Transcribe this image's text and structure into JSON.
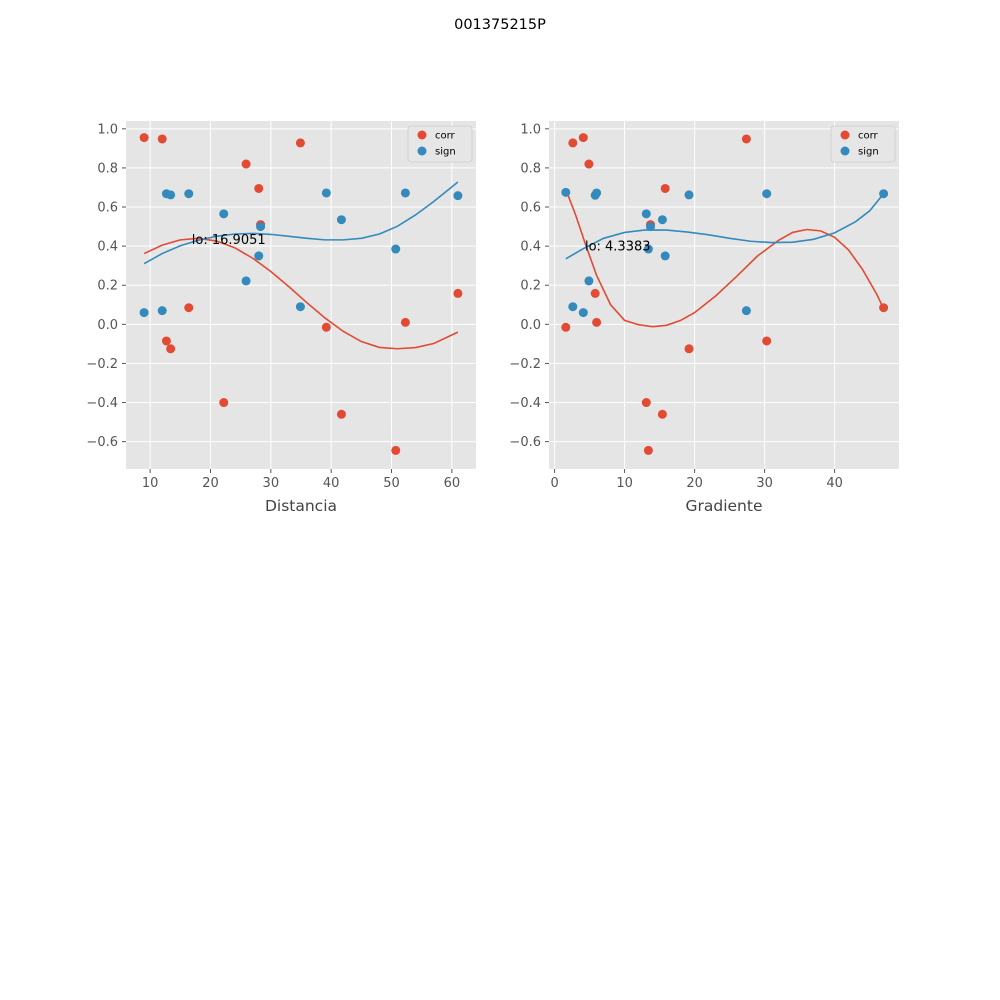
{
  "figure_title": "001375215P",
  "colors": {
    "corr": "#E24A33",
    "sign": "#348ABD",
    "panel_bg": "#E5E5E5",
    "grid": "#FFFFFF"
  },
  "chart_data": [
    {
      "type": "scatter",
      "xlabel": "Distancia",
      "annotation": {
        "text": "lo: 16.9051",
        "x": 16.9051,
        "y": 0.435
      },
      "xlim": [
        6,
        64
      ],
      "ylim": [
        -0.74,
        1.04
      ],
      "xticks": [
        10,
        20,
        30,
        40,
        50,
        60
      ],
      "yticks": [
        -0.6,
        -0.4,
        -0.2,
        0.0,
        0.2,
        0.4,
        0.6,
        0.8,
        1.0
      ],
      "legend": {
        "position": "upper right",
        "entries": [
          "corr",
          "sign"
        ]
      },
      "series": [
        {
          "name": "corr",
          "points": [
            [
              9.0,
              0.955
            ],
            [
              12.0,
              0.948
            ],
            [
              12.7,
              -0.085
            ],
            [
              13.4,
              -0.125
            ],
            [
              16.4,
              0.085
            ],
            [
              22.2,
              -0.4
            ],
            [
              25.9,
              0.82
            ],
            [
              28.0,
              0.695
            ],
            [
              28.3,
              0.51
            ],
            [
              34.9,
              0.928
            ],
            [
              39.2,
              -0.015
            ],
            [
              41.7,
              -0.46
            ],
            [
              50.7,
              -0.645
            ],
            [
              52.3,
              0.01
            ],
            [
              61.0,
              0.158
            ]
          ],
          "curve": [
            [
              9.0,
              0.362
            ],
            [
              12.0,
              0.405
            ],
            [
              15.0,
              0.432
            ],
            [
              18.0,
              0.44
            ],
            [
              21.0,
              0.426
            ],
            [
              24.0,
              0.392
            ],
            [
              27.0,
              0.338
            ],
            [
              30.0,
              0.27
            ],
            [
              33.0,
              0.192
            ],
            [
              36.0,
              0.11
            ],
            [
              39.0,
              0.032
            ],
            [
              42.0,
              -0.036
            ],
            [
              45.0,
              -0.088
            ],
            [
              48.0,
              -0.118
            ],
            [
              51.0,
              -0.125
            ],
            [
              54.0,
              -0.119
            ],
            [
              57.0,
              -0.098
            ],
            [
              61.0,
              -0.04
            ]
          ]
        },
        {
          "name": "sign",
          "points": [
            [
              9.0,
              0.06
            ],
            [
              12.0,
              0.07
            ],
            [
              12.7,
              0.668
            ],
            [
              13.4,
              0.662
            ],
            [
              16.4,
              0.668
            ],
            [
              22.2,
              0.565
            ],
            [
              25.9,
              0.222
            ],
            [
              28.0,
              0.35
            ],
            [
              28.3,
              0.5
            ],
            [
              34.9,
              0.09
            ],
            [
              39.2,
              0.672
            ],
            [
              41.7,
              0.535
            ],
            [
              50.7,
              0.385
            ],
            [
              52.3,
              0.672
            ],
            [
              61.0,
              0.658
            ]
          ],
          "curve": [
            [
              9.0,
              0.31
            ],
            [
              12.0,
              0.362
            ],
            [
              15.0,
              0.402
            ],
            [
              18.0,
              0.43
            ],
            [
              21.0,
              0.45
            ],
            [
              24.0,
              0.462
            ],
            [
              27.0,
              0.465
            ],
            [
              30.0,
              0.46
            ],
            [
              33.0,
              0.45
            ],
            [
              36.0,
              0.44
            ],
            [
              39.0,
              0.432
            ],
            [
              42.0,
              0.432
            ],
            [
              45.0,
              0.44
            ],
            [
              48.0,
              0.462
            ],
            [
              51.0,
              0.502
            ],
            [
              54.0,
              0.56
            ],
            [
              57.0,
              0.628
            ],
            [
              61.0,
              0.728
            ]
          ]
        }
      ]
    },
    {
      "type": "scatter",
      "xlabel": "Gradiente",
      "annotation": {
        "text": "lo: 4.3383",
        "x": 4.3383,
        "y": 0.4
      },
      "xlim": [
        -0.8,
        49.2
      ],
      "ylim": [
        -0.74,
        1.04
      ],
      "xticks": [
        0,
        10,
        20,
        30,
        40
      ],
      "yticks": [
        -0.6,
        -0.4,
        -0.2,
        0.0,
        0.2,
        0.4,
        0.6,
        0.8,
        1.0
      ],
      "legend": {
        "position": "upper right",
        "entries": [
          "corr",
          "sign"
        ]
      },
      "series": [
        {
          "name": "corr",
          "points": [
            [
              1.6,
              -0.015
            ],
            [
              2.6,
              0.928
            ],
            [
              4.1,
              0.955
            ],
            [
              4.9,
              0.82
            ],
            [
              5.8,
              0.158
            ],
            [
              6.0,
              0.01
            ],
            [
              13.1,
              -0.4
            ],
            [
              13.4,
              -0.645
            ],
            [
              13.7,
              0.51
            ],
            [
              15.4,
              -0.46
            ],
            [
              15.8,
              0.695
            ],
            [
              19.2,
              -0.125
            ],
            [
              27.4,
              0.948
            ],
            [
              30.3,
              -0.085
            ],
            [
              47.0,
              0.085
            ]
          ],
          "curve": [
            [
              1.6,
              0.69
            ],
            [
              3.0,
              0.56
            ],
            [
              4.5,
              0.4
            ],
            [
              6.0,
              0.25
            ],
            [
              8.0,
              0.1
            ],
            [
              10.0,
              0.02
            ],
            [
              12.0,
              -0.002
            ],
            [
              14.0,
              -0.012
            ],
            [
              16.0,
              -0.005
            ],
            [
              18.0,
              0.02
            ],
            [
              20.0,
              0.06
            ],
            [
              23.0,
              0.145
            ],
            [
              26.0,
              0.245
            ],
            [
              29.0,
              0.35
            ],
            [
              32.0,
              0.43
            ],
            [
              34.0,
              0.47
            ],
            [
              36.0,
              0.485
            ],
            [
              38.0,
              0.478
            ],
            [
              40.0,
              0.445
            ],
            [
              42.0,
              0.38
            ],
            [
              44.0,
              0.28
            ],
            [
              46.0,
              0.155
            ],
            [
              47.0,
              0.08
            ]
          ]
        },
        {
          "name": "sign",
          "points": [
            [
              1.6,
              0.675
            ],
            [
              2.6,
              0.09
            ],
            [
              4.1,
              0.06
            ],
            [
              4.9,
              0.222
            ],
            [
              5.8,
              0.66
            ],
            [
              6.0,
              0.672
            ],
            [
              13.1,
              0.565
            ],
            [
              13.4,
              0.385
            ],
            [
              13.7,
              0.5
            ],
            [
              15.4,
              0.535
            ],
            [
              15.8,
              0.35
            ],
            [
              19.2,
              0.662
            ],
            [
              27.4,
              0.07
            ],
            [
              30.3,
              0.668
            ],
            [
              47.0,
              0.668
            ]
          ],
          "curve": [
            [
              1.6,
              0.335
            ],
            [
              4.0,
              0.385
            ],
            [
              7.0,
              0.44
            ],
            [
              10.0,
              0.47
            ],
            [
              13.0,
              0.483
            ],
            [
              16.0,
              0.482
            ],
            [
              19.0,
              0.472
            ],
            [
              22.0,
              0.458
            ],
            [
              25.0,
              0.44
            ],
            [
              28.0,
              0.425
            ],
            [
              31.0,
              0.418
            ],
            [
              34.0,
              0.42
            ],
            [
              37.0,
              0.435
            ],
            [
              40.0,
              0.468
            ],
            [
              43.0,
              0.525
            ],
            [
              45.0,
              0.58
            ],
            [
              47.0,
              0.668
            ]
          ]
        }
      ]
    }
  ]
}
